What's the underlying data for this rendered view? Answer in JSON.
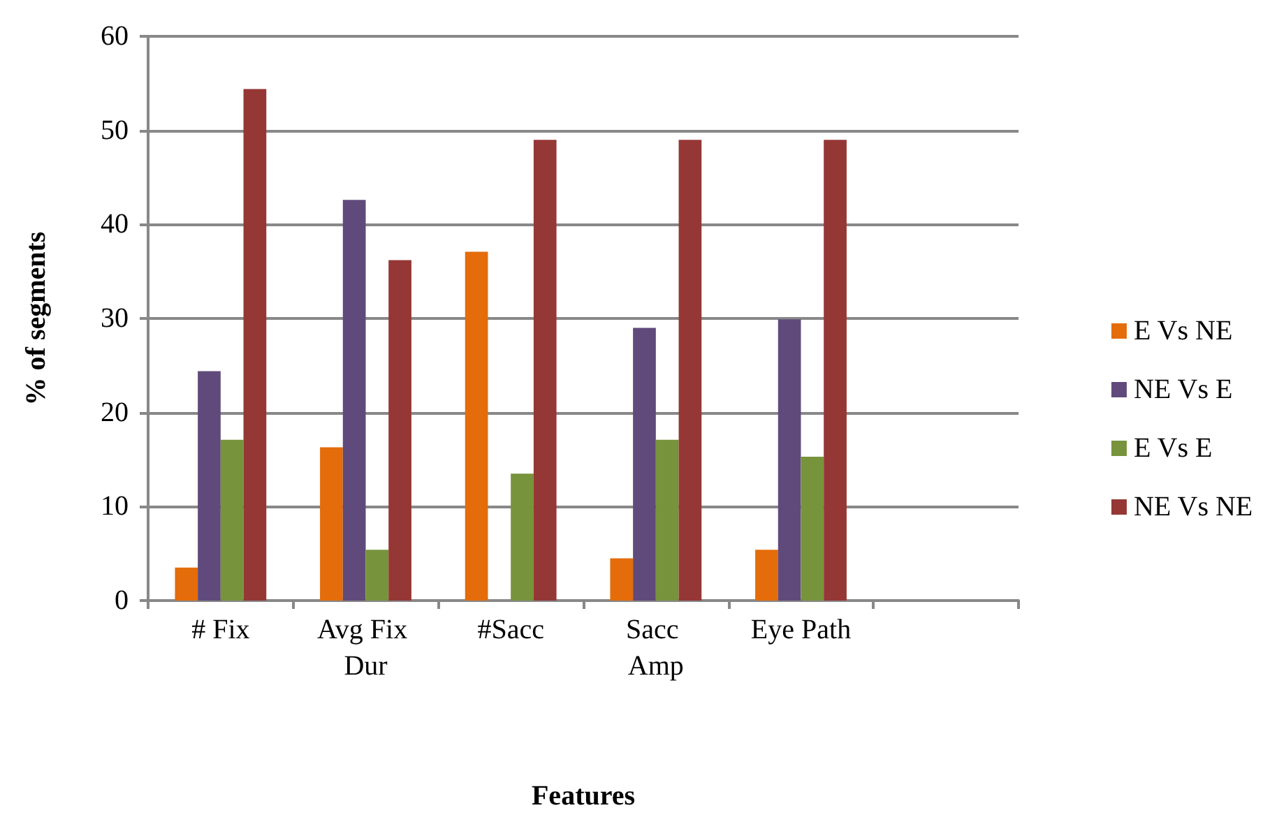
{
  "chart_data": {
    "type": "bar",
    "xlabel": "Features",
    "ylabel": "% of segments",
    "categories": [
      "# Fix",
      "Avg Fix Dur",
      "#Sacc",
      "Sacc Amp",
      "Eye Path",
      null
    ],
    "series": [
      {
        "name": "E Vs NE",
        "color": "#e46c0a",
        "values": [
          3.5,
          16.3,
          37.1,
          4.5,
          5.4,
          null
        ]
      },
      {
        "name": "NE Vs E",
        "color": "#604a7b",
        "values": [
          24.4,
          42.6,
          0,
          29.0,
          29.9,
          null
        ]
      },
      {
        "name": "E Vs E",
        "color": "#77933c",
        "values": [
          17.1,
          5.4,
          13.5,
          17.1,
          15.3,
          null
        ]
      },
      {
        "name": "NE Vs NE",
        "color": "#953735",
        "values": [
          54.4,
          36.2,
          49.0,
          49.0,
          49.0,
          null
        ]
      }
    ],
    "ylim": [
      0,
      60
    ],
    "yticks": [
      0,
      10,
      20,
      30,
      40,
      50,
      60
    ],
    "grid": "y",
    "legend": "right"
  }
}
